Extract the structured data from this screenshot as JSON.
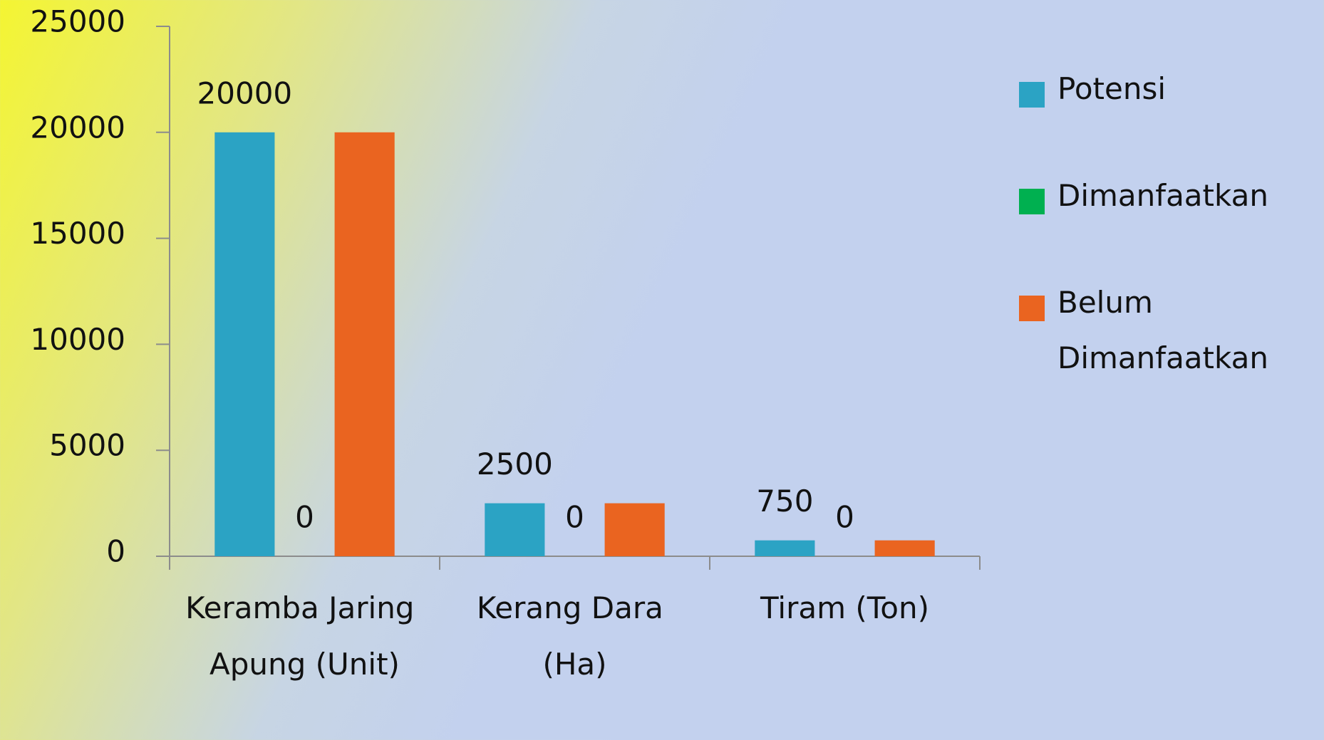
{
  "chart_data": {
    "type": "bar",
    "categories": [
      "Keramba Jaring Apung (Unit)",
      "Kerang Dara (Ha)",
      "Tiram (Ton)"
    ],
    "series": [
      {
        "name": "Potensi",
        "color": "#2ba3c4",
        "values": [
          20000,
          2500,
          750
        ],
        "data_labels": true
      },
      {
        "name": "Dimanfaatkan",
        "color": "#00b050",
        "values": [
          0,
          0,
          0
        ],
        "data_labels": true
      },
      {
        "name": "Belum Dimanfaatkan",
        "color": "#ea6420",
        "values": [
          20000,
          2500,
          750
        ],
        "data_labels": false
      }
    ],
    "ylim": [
      0,
      25000
    ],
    "yticks": [
      0,
      5000,
      10000,
      15000,
      20000,
      25000
    ],
    "grid": false,
    "legend": "right"
  }
}
